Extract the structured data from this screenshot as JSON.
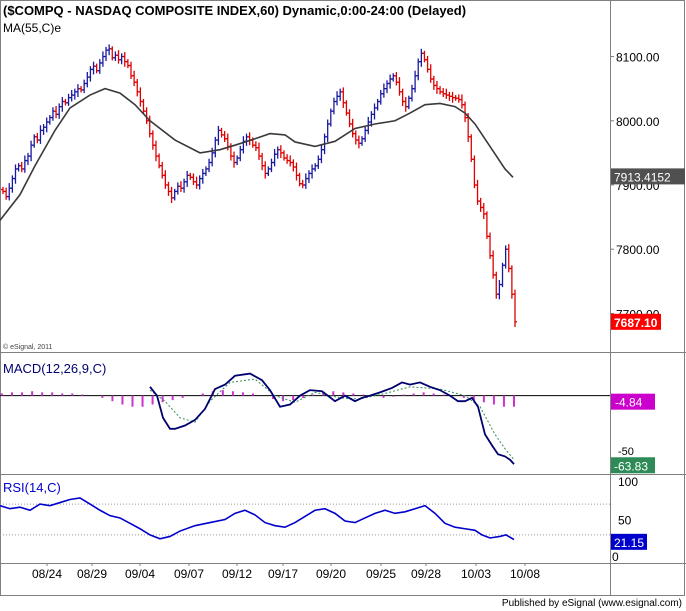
{
  "header": {
    "title": "($COMPQ - NASDAQ COMPOSITE INDEX,60) Dynamic,0:00-24:00 (Delayed)",
    "ma_label": "MA(55,C)e",
    "copyright": "© eSignal, 2011",
    "footer": "Published by eSignal (www.esignal.com)"
  },
  "colors": {
    "up": "#1a1aa0",
    "down": "#e00000",
    "ma": "#3a3a3a",
    "macd": "#000070",
    "signal": "#2e8b57",
    "hist": "#cc33cc",
    "rsi": "#0000cc",
    "last_price_bg": "#ff0000",
    "ma_badge_bg": "#505050",
    "macd_badge_bg": "#cc00cc",
    "signal_badge_bg": "#2e8b57",
    "rsi_badge_bg": "#0000cc"
  },
  "chart_data": [
    {
      "type": "candlestick",
      "title": "($COMPQ - NASDAQ COMPOSITE INDEX,60) Dynamic,0:00-24:00 (Delayed)",
      "ylim": [
        7640,
        8160
      ],
      "yticks": [
        "8100.00",
        "8000.00",
        "7900.00",
        "7800.00",
        "7700.00"
      ],
      "ytick_values": [
        8100,
        8000,
        7900,
        7800,
        7700
      ],
      "x_labels": [
        "08/24",
        "08/29",
        "09/04",
        "09/07",
        "09/12",
        "09/17",
        "09/20",
        "09/25",
        "09/28",
        "10/03",
        "10/08"
      ],
      "closes": [
        7890,
        7882,
        7895,
        7910,
        7925,
        7930,
        7925,
        7938,
        7945,
        7962,
        7975,
        7970,
        7985,
        7990,
        7998,
        8005,
        8015,
        8010,
        8022,
        8030,
        8028,
        8036,
        8040,
        8045,
        8050,
        8048,
        8058,
        8068,
        8080,
        8085,
        8078,
        8090,
        8100,
        8110,
        8112,
        8098,
        8102,
        8095,
        8100,
        8092,
        8086,
        8070,
        8060,
        8045,
        8030,
        8015,
        8000,
        7980,
        7962,
        7945,
        7930,
        7915,
        7900,
        7890,
        7880,
        7890,
        7898,
        7895,
        7905,
        7915,
        7912,
        7905,
        7900,
        7910,
        7918,
        7925,
        7935,
        7950,
        7970,
        7985,
        7978,
        7972,
        7960,
        7945,
        7935,
        7942,
        7955,
        7968,
        7975,
        7970,
        7962,
        7958,
        7945,
        7930,
        7918,
        7925,
        7935,
        7948,
        7955,
        7950,
        7942,
        7938,
        7935,
        7928,
        7915,
        7902,
        7900,
        7910,
        7918,
        7925,
        7930,
        7940,
        7955,
        7975,
        7995,
        8015,
        8030,
        8038,
        8045,
        8028,
        8012,
        7995,
        7980,
        7970,
        7965,
        7972,
        7985,
        7998,
        8010,
        8020,
        8030,
        8042,
        8050,
        8058,
        8065,
        8070,
        8060,
        8045,
        8030,
        8022,
        8035,
        8050,
        8070,
        8092,
        8105,
        8095,
        8080,
        8065,
        8055,
        8050,
        8045,
        8042,
        8040,
        8038,
        8036,
        8035,
        8033,
        8025,
        8005,
        7975,
        7940,
        7900,
        7875,
        7865,
        7855,
        7820,
        7790,
        7760,
        7730,
        7745,
        7775,
        7800,
        7770,
        7730,
        7687
      ],
      "ma_label": "MA(55,C)e",
      "ma_points": [
        [
          0,
          7845
        ],
        [
          20,
          7885
        ],
        [
          35,
          7930
        ],
        [
          55,
          7985
        ],
        [
          70,
          8020
        ],
        [
          90,
          8040
        ],
        [
          105,
          8050
        ],
        [
          120,
          8043
        ],
        [
          135,
          8025
        ],
        [
          150,
          8000
        ],
        [
          175,
          7970
        ],
        [
          200,
          7950
        ],
        [
          220,
          7955
        ],
        [
          235,
          7962
        ],
        [
          255,
          7972
        ],
        [
          270,
          7980
        ],
        [
          285,
          7978
        ],
        [
          295,
          7967
        ],
        [
          315,
          7960
        ],
        [
          335,
          7968
        ],
        [
          355,
          7988
        ],
        [
          375,
          7995
        ],
        [
          395,
          8000
        ],
        [
          410,
          8012
        ],
        [
          425,
          8025
        ],
        [
          440,
          8027
        ],
        [
          455,
          8022
        ],
        [
          465,
          8012
        ],
        [
          475,
          7995
        ],
        [
          490,
          7960
        ],
        [
          505,
          7925
        ],
        [
          513,
          7912
        ]
      ],
      "last_price": "7687.10",
      "ma_value": "7913.4152"
    },
    {
      "type": "line",
      "title": "MACD(12,26,9,C)",
      "ylim": [
        -70,
        35
      ],
      "yticks": [
        "-50"
      ],
      "ytick_values": [
        -50
      ],
      "series": [
        {
          "name": "MACD",
          "points": [
            [
              150,
              8
            ],
            [
              157,
              0
            ],
            [
              163,
              -20
            ],
            [
              170,
              -30
            ],
            [
              175,
              -30
            ],
            [
              185,
              -27
            ],
            [
              195,
              -22
            ],
            [
              205,
              -12
            ],
            [
              215,
              6
            ],
            [
              225,
              10
            ],
            [
              235,
              18
            ],
            [
              250,
              20
            ],
            [
              262,
              14
            ],
            [
              270,
              5
            ],
            [
              280,
              -10
            ],
            [
              290,
              -8
            ],
            [
              300,
              0
            ],
            [
              310,
              5
            ],
            [
              322,
              4
            ],
            [
              335,
              -5
            ],
            [
              345,
              0
            ],
            [
              355,
              -5
            ],
            [
              362,
              -2
            ],
            [
              370,
              0
            ],
            [
              380,
              3
            ],
            [
              392,
              7
            ],
            [
              402,
              12
            ],
            [
              410,
              10
            ],
            [
              420,
              12
            ],
            [
              430,
              8
            ],
            [
              440,
              5
            ],
            [
              450,
              0
            ],
            [
              458,
              -5
            ],
            [
              465,
              -5
            ],
            [
              472,
              -2
            ],
            [
              478,
              -10
            ],
            [
              485,
              -35
            ],
            [
              492,
              -45
            ],
            [
              498,
              -53
            ],
            [
              505,
              -55
            ],
            [
              510,
              -58
            ],
            [
              514,
              -62
            ]
          ]
        },
        {
          "name": "Signal",
          "points": [
            [
              150,
              5
            ],
            [
              165,
              -5
            ],
            [
              180,
              -20
            ],
            [
              195,
              -24
            ],
            [
              210,
              -5
            ],
            [
              230,
              12
            ],
            [
              255,
              15
            ],
            [
              275,
              0
            ],
            [
              295,
              -6
            ],
            [
              315,
              3
            ],
            [
              340,
              -2
            ],
            [
              360,
              -3
            ],
            [
              385,
              2
            ],
            [
              410,
              8
            ],
            [
              440,
              6
            ],
            [
              465,
              0
            ],
            [
              480,
              -10
            ],
            [
              495,
              -35
            ],
            [
              505,
              -48
            ],
            [
              514,
              -58
            ]
          ]
        }
      ],
      "histogram": [
        2,
        3,
        3,
        4,
        3,
        3,
        2,
        2,
        1,
        0,
        -2,
        -5,
        -8,
        -10,
        -10,
        -8,
        -6,
        -4,
        -2,
        0,
        2,
        4,
        5,
        4,
        3,
        2,
        0,
        -3,
        -5,
        -4,
        -2,
        1,
        3,
        4,
        3,
        2,
        1,
        0,
        -2,
        -1,
        1,
        2,
        3,
        2,
        1,
        0,
        -2,
        -4,
        -6,
        -8,
        -10,
        -10
      ],
      "macd_value": "-4.84",
      "signal_value": "-63.83"
    },
    {
      "type": "line",
      "title": "RSI(14,C)",
      "ylim": [
        0,
        100
      ],
      "yticks": [
        "100",
        "50",
        "0"
      ],
      "ytick_values": [
        100,
        50,
        0
      ],
      "bands": [
        70,
        30
      ],
      "series": [
        {
          "name": "RSI",
          "points": [
            [
              0,
              68
            ],
            [
              10,
              64
            ],
            [
              20,
              66
            ],
            [
              30,
              62
            ],
            [
              40,
              70
            ],
            [
              50,
              68
            ],
            [
              60,
              72
            ],
            [
              70,
              76
            ],
            [
              80,
              78
            ],
            [
              90,
              70
            ],
            [
              100,
              62
            ],
            [
              110,
              55
            ],
            [
              120,
              52
            ],
            [
              130,
              45
            ],
            [
              140,
              38
            ],
            [
              150,
              30
            ],
            [
              160,
              25
            ],
            [
              170,
              28
            ],
            [
              180,
              35
            ],
            [
              195,
              42
            ],
            [
              210,
              46
            ],
            [
              225,
              50
            ],
            [
              235,
              58
            ],
            [
              245,
              62
            ],
            [
              255,
              56
            ],
            [
              265,
              46
            ],
            [
              275,
              42
            ],
            [
              285,
              40
            ],
            [
              295,
              46
            ],
            [
              305,
              54
            ],
            [
              315,
              62
            ],
            [
              325,
              64
            ],
            [
              335,
              58
            ],
            [
              345,
              48
            ],
            [
              355,
              46
            ],
            [
              365,
              52
            ],
            [
              375,
              58
            ],
            [
              385,
              62
            ],
            [
              395,
              58
            ],
            [
              405,
              60
            ],
            [
              415,
              64
            ],
            [
              425,
              68
            ],
            [
              435,
              58
            ],
            [
              445,
              45
            ],
            [
              455,
              40
            ],
            [
              465,
              38
            ],
            [
              475,
              36
            ],
            [
              482,
              30
            ],
            [
              490,
              26
            ],
            [
              500,
              28
            ],
            [
              506,
              30
            ],
            [
              514,
              24
            ]
          ]
        }
      ],
      "rsi_value": "21.15"
    }
  ]
}
